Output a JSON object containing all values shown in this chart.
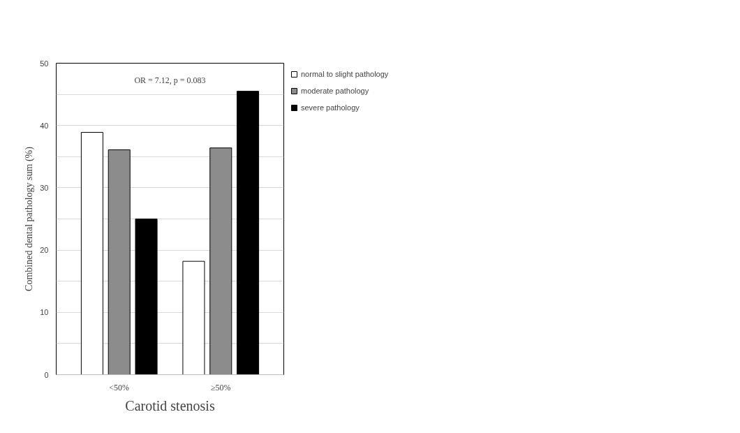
{
  "chart_data": {
    "type": "bar",
    "xlabel": "Carotid stenosis",
    "ylabel": "Combined dental pathology sum (%)",
    "annotations": [
      "OR = 7.12, p = 0.083"
    ],
    "categories": [
      "<50%",
      "≥50%"
    ],
    "series": [
      {
        "name": "normal to slight pathology",
        "color": "#ffffff",
        "values": [
          38.9,
          18.2
        ]
      },
      {
        "name": "moderate pathology",
        "color": "#8c8c8c",
        "values": [
          36.1,
          36.4
        ]
      },
      {
        "name": "severe pathology",
        "color": "#000000",
        "values": [
          25.0,
          45.5
        ]
      }
    ],
    "ylim": [
      0,
      50
    ],
    "yticks": [
      0,
      {
        "value": 5,
        "label": null
      },
      10,
      {
        "value": 15,
        "label": null
      },
      20,
      {
        "value": 25,
        "label": null
      },
      30,
      {
        "value": 35,
        "label": null
      },
      40,
      {
        "value": 45,
        "label": null
      },
      50
    ],
    "grid": "y",
    "legend": "top right"
  }
}
